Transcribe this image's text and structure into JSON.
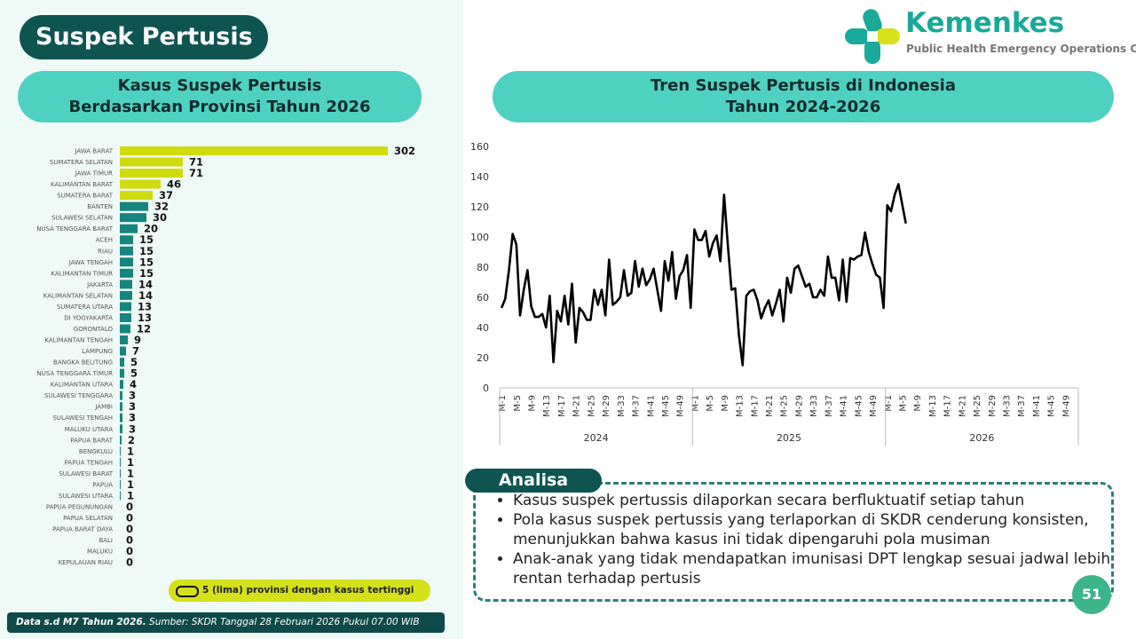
{
  "header": {
    "title": "Suspek Pertusis"
  },
  "logo": {
    "name": "Kemenkes",
    "tagline": "Public Health Emergency Operations Center"
  },
  "chart_data": [
    {
      "type": "bar",
      "title": "Kasus Suspek Pertusis",
      "subtitle": "Berdasarkan Provinsi Tahun 2026",
      "categories": [
        "JAWA BARAT",
        "SUMATERA SELATAN",
        "JAWA TIMUR",
        "KALIMANTAN BARAT",
        "SUMATERA BARAT",
        "BANTEN",
        "SULAWESI SELATAN",
        "NUSA TENGGARA BARAT",
        "ACEH",
        "RIAU",
        "JAWA TENGAH",
        "KALIMANTAN TIMUR",
        "JAKARTA",
        "KALIMANTAN SELATAN",
        "SUMATERA UTARA",
        "DI YOGYAKARTA",
        "GORONTALO",
        "KALIMANTAN TENGAH",
        "LAMPUNG",
        "BANGKA BELITUNG",
        "NUSA TENGGARA TIMUR",
        "KALIMANTAN UTARA",
        "SULAWESI TENGGARA",
        "JAMBI",
        "SULAWESI TENGAH",
        "MALUKU UTARA",
        "PAPUA BARAT",
        "BENGKULU",
        "PAPUA TENGAH",
        "SULAWESI BARAT",
        "PAPUA",
        "SULAWESI UTARA",
        "PAPUA PEGUNUNGAN",
        "PAPUA SELATAN",
        "PAPUA BARAT DAYA",
        "BALI",
        "MALUKU",
        "KEPULAUAN RIAU"
      ],
      "values": [
        302,
        71,
        71,
        46,
        37,
        32,
        30,
        20,
        15,
        15,
        15,
        15,
        14,
        14,
        13,
        13,
        12,
        9,
        7,
        5,
        5,
        4,
        3,
        3,
        3,
        3,
        2,
        1,
        1,
        1,
        1,
        1,
        0,
        0,
        0,
        0,
        0,
        0
      ],
      "colors": [
        "#cfdb0c",
        "#cfdb0c",
        "#cfdb0c",
        "#cfdb0c",
        "#cfdb0c",
        "#16857f",
        "#16857f",
        "#16857f",
        "#16857f",
        "#16857f",
        "#16857f",
        "#16857f",
        "#16857f",
        "#16857f",
        "#16857f",
        "#16857f",
        "#16857f",
        "#16857f",
        "#16857f",
        "#16857f",
        "#16857f",
        "#16857f",
        "#16857f",
        "#16857f",
        "#16857f",
        "#16857f",
        "#16857f",
        "#16857f",
        "#16857f",
        "#16857f",
        "#16857f",
        "#16857f",
        "#16857f",
        "#16857f",
        "#16857f",
        "#16857f",
        "#16857f",
        "#16857f"
      ],
      "legend": "5 (lima) provinsi dengan kasus tertinggi"
    },
    {
      "type": "line",
      "title": "Tren Suspek Pertusis di Indonesia",
      "subtitle": "Tahun 2024-2026",
      "categories": [
        "M-1",
        null,
        null,
        null,
        "M-5",
        null,
        null,
        null,
        "M-9",
        null,
        null,
        null,
        "M-13",
        null,
        null,
        null,
        "M-17",
        null,
        null,
        null,
        "M-21",
        null,
        null,
        null,
        "M-25",
        null,
        null,
        null,
        "M-29",
        null,
        null,
        null,
        "M-33",
        null,
        null,
        null,
        "M-37",
        null,
        null,
        null,
        "M-41",
        null,
        null,
        null,
        "M-45",
        null,
        null,
        null,
        "M-49",
        null,
        null,
        null,
        "M-1",
        null,
        null,
        null,
        "M-5",
        null,
        null,
        null,
        "M-9",
        null,
        null,
        null,
        "M-13",
        null,
        null,
        null,
        "M-17",
        null,
        null,
        null,
        "M-21",
        null,
        null,
        null,
        "M-25",
        null,
        null,
        null,
        "M-29",
        null,
        null,
        null,
        "M-33",
        null,
        null,
        null,
        "M-37",
        null,
        null,
        null,
        "M-41",
        null,
        null,
        null,
        "M-45",
        null,
        null,
        null,
        "M-49",
        null,
        null,
        null,
        "M-1",
        null,
        null,
        null,
        "M-5",
        null,
        null,
        null,
        "M-9",
        null,
        null,
        null,
        "M-13",
        null,
        null,
        null,
        "M-17",
        null,
        null,
        null,
        "M-21",
        null,
        null,
        null,
        "M-25",
        null,
        null,
        null,
        "M-29",
        null,
        null,
        null,
        "M-33",
        null,
        null,
        null,
        "M-37",
        null,
        null,
        null,
        "M-41",
        null,
        null,
        null,
        "M-45",
        null,
        null,
        null,
        "M-49",
        null,
        null,
        null
      ],
      "groups": [
        "2024",
        "2025",
        "2026"
      ],
      "values": [
        53,
        59,
        78,
        102,
        95,
        48,
        65,
        78,
        54,
        47,
        47,
        49,
        40,
        61,
        17,
        51,
        44,
        61,
        42,
        69,
        30,
        53,
        50,
        45,
        45,
        65,
        55,
        65,
        48,
        85,
        55,
        57,
        60,
        78,
        61,
        63,
        84,
        67,
        79,
        68,
        72,
        79,
        65,
        51,
        84,
        71,
        90,
        59,
        74,
        78,
        88,
        53,
        105,
        98,
        98,
        104,
        87,
        96,
        101,
        84,
        128,
        95,
        65,
        66,
        35,
        15,
        61,
        64,
        65,
        58,
        46,
        53,
        58,
        48,
        56,
        65,
        44,
        73,
        63,
        79,
        81,
        74,
        67,
        69,
        60,
        60,
        65,
        61,
        87,
        73,
        73,
        58,
        85,
        57,
        86,
        85,
        87,
        88,
        103,
        90,
        82,
        75,
        73,
        53,
        121,
        117,
        128,
        135,
        122,
        109,
        null,
        null,
        null,
        null,
        null,
        null,
        null,
        null,
        null,
        null,
        null,
        null,
        null,
        null,
        null,
        null,
        null,
        null,
        null,
        null,
        null,
        null,
        null,
        null,
        null,
        null,
        null,
        null,
        null,
        null,
        null,
        null,
        null,
        null,
        null,
        null,
        null,
        null,
        null,
        null,
        null,
        null,
        null,
        null,
        null,
        null
      ],
      "color": "#000000",
      "ylim": [
        0,
        160
      ],
      "yticks": [
        0,
        20,
        40,
        60,
        80,
        100,
        120,
        140,
        160
      ],
      "grid": false
    }
  ],
  "analysis": {
    "title": "Analisa",
    "points": [
      "Kasus suspek pertussis dilaporkan secara berfluktuatif setiap tahun",
      "Pola kasus suspek pertussis yang terlaporkan di SKDR cenderung konsisten, menunjukkan bahwa kasus ini tidak dipengaruhi pola musiman",
      "Anak-anak yang tidak mendapatkan imunisasi DPT lengkap sesuai jadwal lebih rentan terhadap pertusis"
    ]
  },
  "footer": {
    "data_note": "Data s.d M7 Tahun 2026.",
    "source": "Sumber: SKDR Tanggal 28 Februari 2026 Pukul 07.00 WIB"
  },
  "page_number": 51
}
